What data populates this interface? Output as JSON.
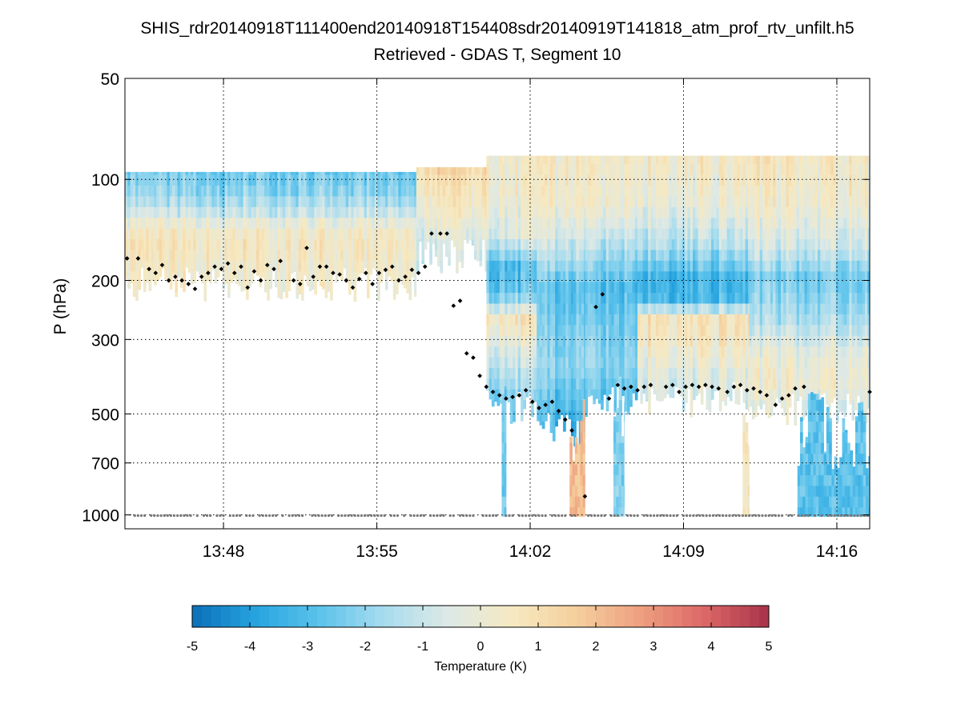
{
  "chart_data": {
    "type": "heatmap",
    "title": "SHIS_rdr20140918T111400end20140918T154408sdr20140919T141818_atm_prof_rtv_unfilt.h5",
    "subtitle": "Retrieved - GDAS T, Segment 10",
    "xlabel": "",
    "ylabel": "P (hPa)",
    "y_scale": "log-reversed",
    "ylim": [
      1100,
      50
    ],
    "xlim_minutes": [
      823.5,
      857.5
    ],
    "grid": true,
    "x_ticks": [
      {
        "minute": 828,
        "label": "13:48"
      },
      {
        "minute": 835,
        "label": "13:55"
      },
      {
        "minute": 842,
        "label": "14:02"
      },
      {
        "minute": 849,
        "label": "14:09"
      },
      {
        "minute": 856,
        "label": "14:16"
      }
    ],
    "y_ticks": [
      {
        "value": 50,
        "label": "50"
      },
      {
        "value": 100,
        "label": "100"
      },
      {
        "value": 200,
        "label": "200"
      },
      {
        "value": 300,
        "label": "300"
      },
      {
        "value": 500,
        "label": "500"
      },
      {
        "value": 700,
        "label": "700"
      },
      {
        "value": 1000,
        "label": "1000"
      }
    ],
    "colorbar": {
      "label": "Temperature (K)",
      "min": -5,
      "max": 5,
      "tick_values": [
        -5,
        -4,
        -3,
        -2,
        -1,
        0,
        1,
        2,
        3,
        4,
        5
      ],
      "tick_labels": [
        "-5",
        "-4",
        "-3",
        "-2",
        "-1",
        "0",
        "1",
        "2",
        "3",
        "4",
        "5"
      ],
      "colors": [
        "#0b6fb8",
        "#27a4df",
        "#5cc3ec",
        "#a8dcee",
        "#dde9e6",
        "#f6e9c1",
        "#f5cf9c",
        "#ee9f80",
        "#dc6767",
        "#a8334a"
      ]
    },
    "segments": [
      {
        "t0": 823.5,
        "t1": 836.8,
        "top": 95,
        "base": 200,
        "profile": [
          [
            95,
            -2.4
          ],
          [
            110,
            -2.0
          ],
          [
            125,
            -1.0
          ],
          [
            140,
            0.3
          ],
          [
            160,
            0.6
          ],
          [
            185,
            0.3
          ],
          [
            200,
            0.2
          ]
        ]
      },
      {
        "t0": 836.8,
        "t1": 840.0,
        "top": 92,
        "base": 165,
        "profile": [
          [
            92,
            1.2
          ],
          [
            100,
            0.8
          ],
          [
            120,
            0.3
          ],
          [
            150,
            -0.6
          ],
          [
            165,
            -0.8
          ]
        ]
      },
      {
        "t0": 840.0,
        "t1": 842.3,
        "top": 85,
        "base": 460,
        "profile": [
          [
            85,
            0.3
          ],
          [
            110,
            0.2
          ],
          [
            150,
            -0.5
          ],
          [
            180,
            -3.0
          ],
          [
            220,
            -2.6
          ],
          [
            260,
            0.7
          ],
          [
            330,
            -0.6
          ],
          [
            420,
            -1.8
          ],
          [
            460,
            -2.2
          ]
        ]
      },
      {
        "t0": 842.3,
        "t1": 844.5,
        "top": 85,
        "base": 540,
        "profile": [
          [
            85,
            0.3
          ],
          [
            120,
            0.1
          ],
          [
            170,
            -1.5
          ],
          [
            210,
            -3.0
          ],
          [
            280,
            -2.5
          ],
          [
            360,
            -2.2
          ],
          [
            460,
            -3.0
          ],
          [
            540,
            -3.5
          ]
        ]
      },
      {
        "t0": 844.5,
        "t1": 846.9,
        "top": 85,
        "base": 440,
        "profile": [
          [
            85,
            0.4
          ],
          [
            120,
            0.1
          ],
          [
            170,
            -1.8
          ],
          [
            210,
            -3.0
          ],
          [
            280,
            -2.4
          ],
          [
            360,
            -2.0
          ],
          [
            440,
            -2.8
          ]
        ]
      },
      {
        "t0": 846.9,
        "t1": 852.0,
        "top": 85,
        "base": 440,
        "profile": [
          [
            85,
            0.5
          ],
          [
            120,
            0.0
          ],
          [
            160,
            -1.5
          ],
          [
            200,
            -3.4
          ],
          [
            230,
            -3.0
          ],
          [
            260,
            0.8
          ],
          [
            300,
            0.6
          ],
          [
            380,
            -0.3
          ],
          [
            440,
            -0.6
          ]
        ]
      },
      {
        "t0": 852.0,
        "t1": 857.5,
        "top": 85,
        "base": 470,
        "profile": [
          [
            85,
            0.6
          ],
          [
            120,
            0.2
          ],
          [
            160,
            -0.8
          ],
          [
            200,
            -2.5
          ],
          [
            260,
            -1.5
          ],
          [
            330,
            -0.2
          ],
          [
            400,
            0.2
          ],
          [
            470,
            -0.4
          ]
        ]
      }
    ],
    "surface_columns": [
      {
        "t0": 840.7,
        "t1": 840.9,
        "v": -2.6,
        "top": 480
      },
      {
        "t0": 843.8,
        "t1": 844.5,
        "v": 2.0,
        "top": 530
      },
      {
        "t0": 845.8,
        "t1": 846.3,
        "v": -2.2,
        "top": 420
      },
      {
        "t0": 851.7,
        "t1": 852.0,
        "v": 0.6,
        "top": 480
      },
      {
        "t0": 854.2,
        "t1": 857.5,
        "v": -2.8,
        "top": 520
      }
    ],
    "cloud_top_markers": {
      "type": "scatter",
      "points": [
        [
          823.6,
          172
        ],
        [
          824.1,
          172
        ],
        [
          824.6,
          185
        ],
        [
          824.9,
          190
        ],
        [
          825.2,
          180
        ],
        [
          825.5,
          200
        ],
        [
          825.8,
          195
        ],
        [
          826.1,
          200
        ],
        [
          826.4,
          205
        ],
        [
          826.7,
          212
        ],
        [
          827.0,
          195
        ],
        [
          827.3,
          190
        ],
        [
          827.6,
          182
        ],
        [
          827.9,
          185
        ],
        [
          828.2,
          178
        ],
        [
          828.5,
          190
        ],
        [
          828.8,
          182
        ],
        [
          829.1,
          210
        ],
        [
          829.4,
          188
        ],
        [
          829.7,
          200
        ],
        [
          830.0,
          180
        ],
        [
          830.3,
          185
        ],
        [
          830.6,
          175
        ],
        [
          831.2,
          200
        ],
        [
          831.5,
          205
        ],
        [
          831.8,
          160
        ],
        [
          832.1,
          195
        ],
        [
          832.4,
          182
        ],
        [
          832.7,
          182
        ],
        [
          833.0,
          190
        ],
        [
          833.3,
          192
        ],
        [
          833.6,
          200
        ],
        [
          833.9,
          210
        ],
        [
          834.2,
          198
        ],
        [
          834.5,
          190
        ],
        [
          834.8,
          205
        ],
        [
          835.1,
          190
        ],
        [
          835.4,
          186
        ],
        [
          835.7,
          182
        ],
        [
          836.0,
          200
        ],
        [
          836.3,
          195
        ],
        [
          836.6,
          186
        ],
        [
          836.9,
          190
        ],
        [
          837.2,
          182
        ],
        [
          837.5,
          145
        ],
        [
          837.9,
          145
        ],
        [
          838.2,
          145
        ],
        [
          838.5,
          238
        ],
        [
          838.8,
          230
        ],
        [
          839.1,
          330
        ],
        [
          839.4,
          340
        ],
        [
          839.7,
          385
        ],
        [
          840.0,
          415
        ],
        [
          840.3,
          430
        ],
        [
          840.6,
          440
        ],
        [
          840.9,
          450
        ],
        [
          841.2,
          445
        ],
        [
          841.5,
          440
        ],
        [
          841.8,
          425
        ],
        [
          842.1,
          460
        ],
        [
          842.4,
          480
        ],
        [
          842.7,
          470
        ],
        [
          843.0,
          460
        ],
        [
          843.3,
          490
        ],
        [
          843.6,
          520
        ],
        [
          843.9,
          560
        ],
        [
          844.5,
          880
        ],
        [
          845.0,
          240
        ],
        [
          845.3,
          220
        ],
        [
          845.6,
          450
        ],
        [
          846.0,
          410
        ],
        [
          846.3,
          420
        ],
        [
          846.6,
          415
        ],
        [
          846.9,
          425
        ],
        [
          847.2,
          415
        ],
        [
          847.5,
          410
        ],
        [
          848.2,
          415
        ],
        [
          848.5,
          410
        ],
        [
          848.8,
          430
        ],
        [
          849.1,
          415
        ],
        [
          849.4,
          410
        ],
        [
          849.7,
          415
        ],
        [
          850.0,
          410
        ],
        [
          850.3,
          415
        ],
        [
          850.6,
          420
        ],
        [
          851.0,
          430
        ],
        [
          851.3,
          415
        ],
        [
          851.6,
          410
        ],
        [
          851.9,
          425
        ],
        [
          852.2,
          420
        ],
        [
          852.5,
          430
        ],
        [
          852.8,
          440
        ],
        [
          853.2,
          470
        ],
        [
          853.5,
          450
        ],
        [
          853.8,
          440
        ],
        [
          854.1,
          420
        ],
        [
          854.5,
          415
        ],
        [
          857.5,
          430
        ]
      ]
    },
    "surface_marker_pressure": 1005
  }
}
